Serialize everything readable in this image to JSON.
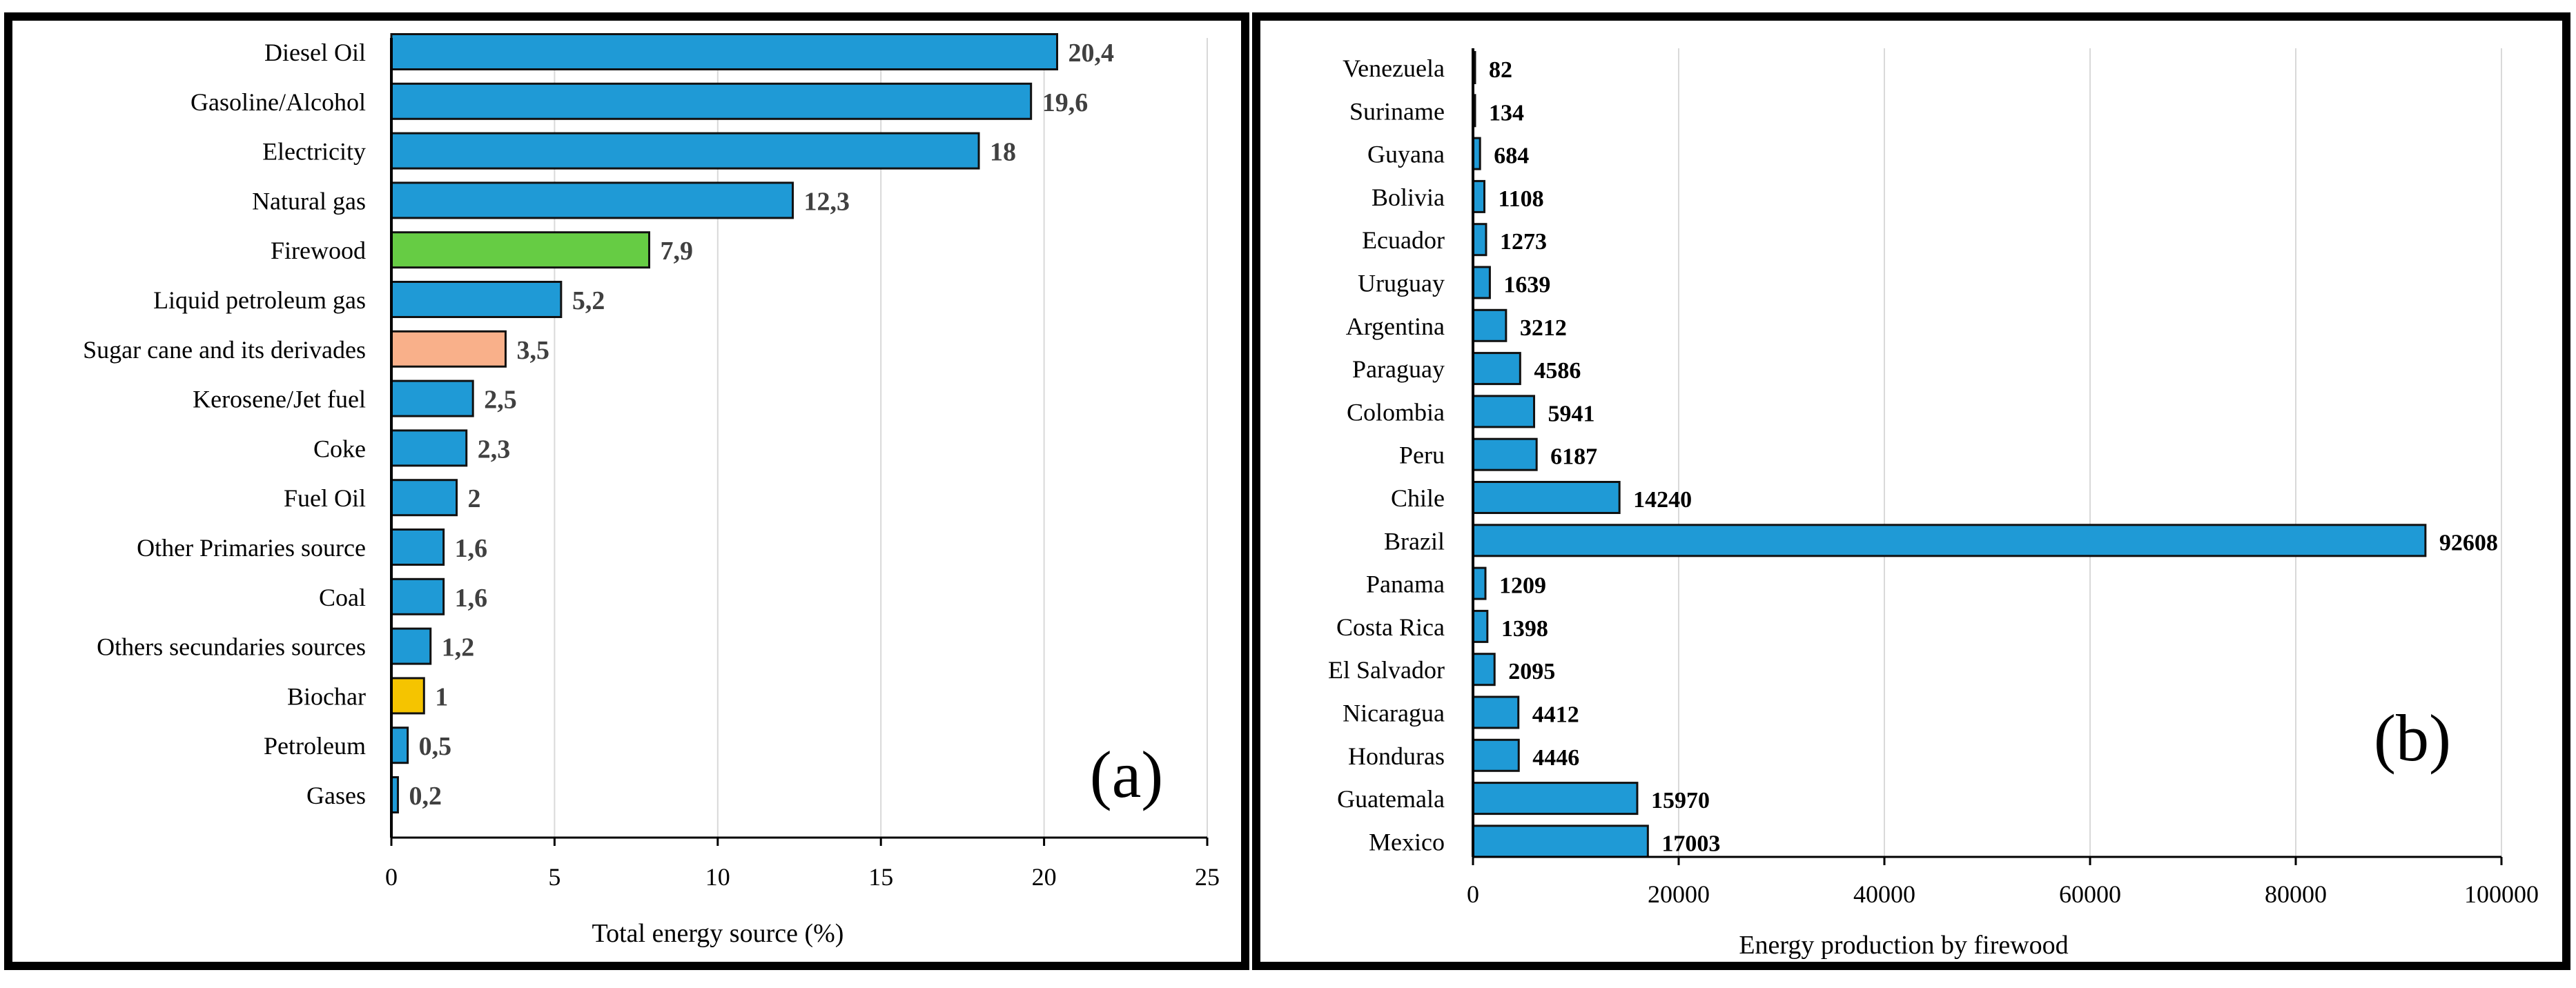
{
  "chart_data": [
    {
      "type": "bar",
      "orientation": "horizontal",
      "panel_label": "(a)",
      "categories": [
        "Diesel Oil",
        "Gasoline/Alcohol",
        "Electricity",
        "Natural gas",
        "Firewood",
        "Liquid petroleum gas",
        "Sugar cane and its derivades",
        "Kerosene/Jet fuel",
        "Coke",
        "Fuel Oil",
        "Other Primaries source",
        "Coal",
        "Others secundaries sources",
        "Biochar",
        "Petroleum",
        "Gases"
      ],
      "values": [
        20.4,
        19.6,
        18,
        12.3,
        7.9,
        5.2,
        3.5,
        2.5,
        2.3,
        2,
        1.6,
        1.6,
        1.2,
        1,
        0.5,
        0.2
      ],
      "value_labels": [
        "20,4",
        "19,6",
        "18",
        "12,3",
        "7,9",
        "5,2",
        "3,5",
        "2,5",
        "2,3",
        "2",
        "1,6",
        "1,6",
        "1,2",
        "1",
        "0,5",
        "0,2"
      ],
      "colors": [
        "#1f9ad6",
        "#1f9ad6",
        "#1f9ad6",
        "#1f9ad6",
        "#66cc44",
        "#1f9ad6",
        "#f9b08a",
        "#1f9ad6",
        "#1f9ad6",
        "#1f9ad6",
        "#1f9ad6",
        "#1f9ad6",
        "#1f9ad6",
        "#f5c400",
        "#1f9ad6",
        "#1f9ad6"
      ],
      "xlabel": "Total energy source (%)",
      "ylabel": "",
      "xlim": [
        0,
        25
      ],
      "xticks": [
        0,
        5,
        10,
        15,
        20,
        25
      ],
      "xtick_labels": [
        "0",
        "5",
        "10",
        "15",
        "20",
        "25"
      ],
      "grid": true
    },
    {
      "type": "bar",
      "orientation": "horizontal",
      "panel_label": "(b)",
      "categories": [
        "Venezuela",
        "Suriname",
        "Guyana",
        "Bolivia",
        "Ecuador",
        "Uruguay",
        "Argentina",
        "Paraguay",
        "Colombia",
        "Peru",
        "Chile",
        "Brazil",
        "Panama",
        "Costa Rica",
        "El Salvador",
        "Nicaragua",
        "Honduras",
        "Guatemala",
        "Mexico"
      ],
      "values": [
        82,
        134,
        684,
        1108,
        1273,
        1639,
        3212,
        4586,
        5941,
        6187,
        14240,
        92608,
        1209,
        1398,
        2095,
        4412,
        4446,
        15970,
        17003
      ],
      "value_labels": [
        "82",
        "134",
        "684",
        "1108",
        "1273",
        "1639",
        "3212",
        "4586",
        "5941",
        "6187",
        "14240",
        "92608",
        "1209",
        "1398",
        "2095",
        "4412",
        "4446",
        "15970",
        "17003"
      ],
      "color": "#1f9ad6",
      "xlabel": "Energy production by firewood",
      "ylabel": "",
      "xlim": [
        0,
        100000
      ],
      "xticks": [
        0,
        20000,
        40000,
        60000,
        80000,
        100000
      ],
      "xtick_labels": [
        "0",
        "20000",
        "40000",
        "60000",
        "80000",
        "100000"
      ],
      "grid": true
    }
  ]
}
